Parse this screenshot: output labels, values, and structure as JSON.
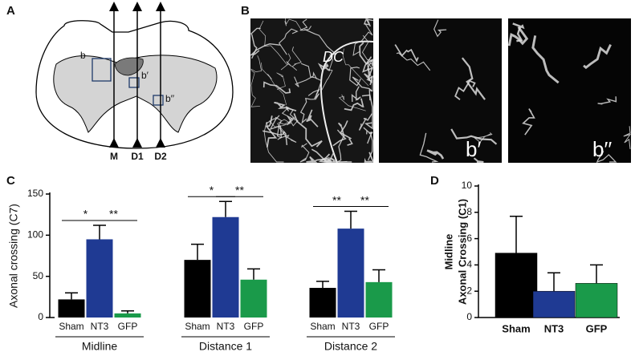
{
  "panel_labels": [
    "A",
    "B",
    "C",
    "D"
  ],
  "diagram": {
    "box_labels": [
      "b",
      "b′",
      "b′′"
    ],
    "arrow_labels": [
      "M",
      "D1",
      "D2"
    ]
  },
  "images": {
    "labels": [
      "DC",
      "b′",
      "b′′"
    ]
  },
  "chart_data": [
    {
      "type": "grouped_bar",
      "y_label": "Axonal crossing (C7)",
      "ylim": [
        0,
        150
      ],
      "yticks": [
        0,
        50,
        100,
        150
      ],
      "colors": [
        "#000000",
        "#1f3a93",
        "#1a9a4a"
      ],
      "groups": [
        {
          "name": "Midline",
          "categories": [
            "Sham",
            "NT3",
            "GFP"
          ],
          "values": [
            22,
            95,
            5
          ],
          "errors": [
            8,
            17,
            3
          ],
          "significance": [
            "*",
            "**"
          ]
        },
        {
          "name": "Distance 1",
          "categories": [
            "Sham",
            "NT3",
            "GFP"
          ],
          "values": [
            70,
            122,
            46
          ],
          "errors": [
            19,
            19,
            13
          ],
          "significance": [
            "*",
            "**"
          ]
        },
        {
          "name": "Distance 2",
          "categories": [
            "Sham",
            "NT3",
            "GFP"
          ],
          "values": [
            36,
            108,
            43
          ],
          "errors": [
            8,
            21,
            15
          ],
          "significance": [
            "**",
            "**"
          ]
        }
      ]
    },
    {
      "type": "bar",
      "y_label": [
        "Midline",
        "Axonal Crossing (C1)"
      ],
      "ylim": [
        0,
        10
      ],
      "yticks": [
        0,
        2,
        4,
        6,
        8,
        10
      ],
      "colors": [
        "#000000",
        "#1f3a93",
        "#1a9a4a"
      ],
      "categories": [
        "Sham",
        "NT3",
        "GFP"
      ],
      "values": [
        4.9,
        2.0,
        2.6
      ],
      "errors": [
        2.8,
        1.4,
        1.4
      ]
    }
  ]
}
